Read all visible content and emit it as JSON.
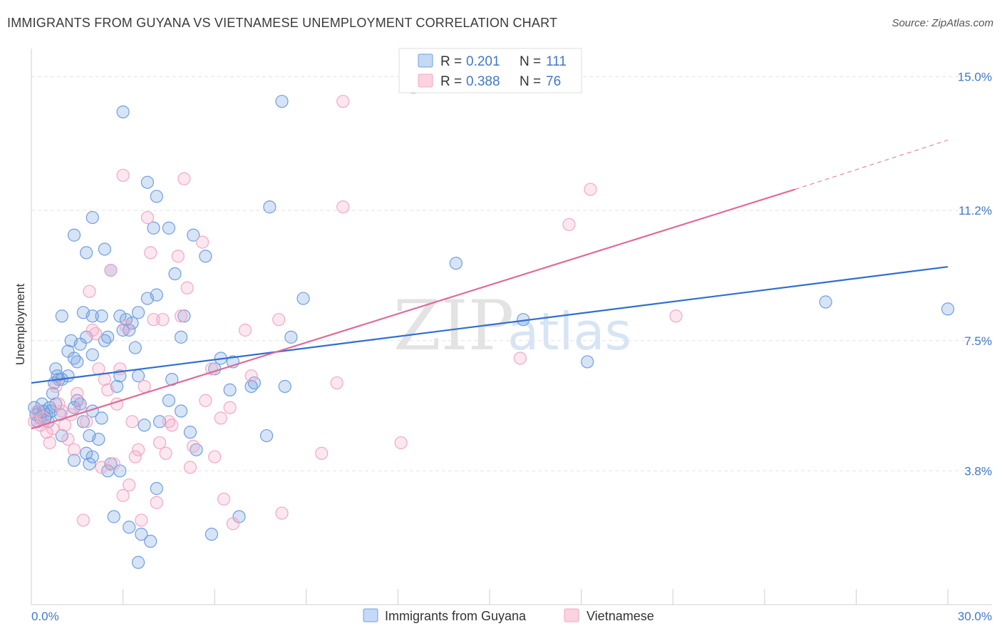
{
  "title": "IMMIGRANTS FROM GUYANA VS VIETNAMESE UNEMPLOYMENT CORRELATION CHART",
  "source": "Source: ZipAtlas.com",
  "watermark": {
    "zip": "ZIP",
    "atlas": "atlas"
  },
  "chart_data": {
    "type": "scatter",
    "xlabel": "",
    "ylabel": "Unemployment",
    "xlim": [
      0,
      30
    ],
    "ylim": [
      0,
      15.6
    ],
    "x_tick_labels": [
      "0.0%",
      "30.0%"
    ],
    "y_ticks": [
      3.8,
      7.5,
      11.2,
      15.0
    ],
    "y_tick_labels": [
      "3.8%",
      "7.5%",
      "11.2%",
      "15.0%"
    ],
    "grid": true,
    "legend_position": "top-center",
    "colors": {
      "guyana": "#6f9fe0",
      "guyana_line": "#2f6fd0",
      "vietnamese": "#f2a8c4",
      "vietnamese_line": "#e06b98",
      "tick": "#3f78c8"
    },
    "legend": [
      {
        "r_label": "R =",
        "r_value": "0.201",
        "n_label": "N =",
        "n_value": "111"
      },
      {
        "r_label": "R =",
        "r_value": "0.388",
        "n_label": "N =",
        "n_value": "76"
      }
    ],
    "series": [
      {
        "name": "Immigrants from Guyana",
        "trend": {
          "x0": 0,
          "y0": 6.3,
          "x1": 30,
          "y1": 9.6
        },
        "points": [
          [
            0.1,
            5.6
          ],
          [
            0.15,
            5.4
          ],
          [
            0.2,
            5.2
          ],
          [
            0.25,
            5.5
          ],
          [
            0.3,
            5.3
          ],
          [
            0.35,
            5.7
          ],
          [
            0.4,
            5.5
          ],
          [
            0.45,
            5.3
          ],
          [
            0.5,
            5.4
          ],
          [
            0.55,
            5.2
          ],
          [
            0.6,
            5.6
          ],
          [
            0.65,
            5.5
          ],
          [
            0.7,
            6.0
          ],
          [
            0.75,
            6.3
          ],
          [
            0.8,
            5.7
          ],
          [
            0.85,
            6.5
          ],
          [
            0.9,
            6.4
          ],
          [
            0.95,
            5.4
          ],
          [
            1.0,
            4.8
          ],
          [
            0.8,
            6.7
          ],
          [
            1.0,
            6.4
          ],
          [
            1.2,
            6.5
          ],
          [
            1.0,
            8.2
          ],
          [
            1.2,
            7.2
          ],
          [
            1.3,
            7.5
          ],
          [
            1.4,
            5.6
          ],
          [
            1.4,
            7.0
          ],
          [
            1.5,
            5.8
          ],
          [
            1.5,
            6.9
          ],
          [
            1.6,
            5.7
          ],
          [
            1.7,
            5.2
          ],
          [
            1.4,
            4.1
          ],
          [
            1.4,
            10.5
          ],
          [
            1.6,
            7.4
          ],
          [
            1.7,
            8.3
          ],
          [
            1.8,
            10.0
          ],
          [
            1.8,
            7.6
          ],
          [
            1.8,
            4.3
          ],
          [
            1.9,
            4.8
          ],
          [
            1.9,
            4.0
          ],
          [
            2.0,
            4.2
          ],
          [
            2.0,
            8.2
          ],
          [
            2.0,
            7.1
          ],
          [
            2.0,
            5.5
          ],
          [
            2.0,
            11.0
          ],
          [
            2.2,
            4.7
          ],
          [
            2.3,
            5.3
          ],
          [
            2.3,
            8.2
          ],
          [
            2.4,
            7.5
          ],
          [
            2.4,
            10.1
          ],
          [
            2.5,
            3.8
          ],
          [
            2.5,
            7.6
          ],
          [
            2.6,
            4.0
          ],
          [
            2.6,
            9.5
          ],
          [
            2.7,
            2.5
          ],
          [
            2.8,
            6.2
          ],
          [
            2.9,
            3.8
          ],
          [
            2.9,
            6.5
          ],
          [
            2.9,
            8.2
          ],
          [
            3.0,
            7.8
          ],
          [
            3.0,
            14.0
          ],
          [
            3.1,
            8.1
          ],
          [
            3.2,
            7.8
          ],
          [
            3.2,
            2.2
          ],
          [
            3.3,
            8.0
          ],
          [
            3.4,
            7.3
          ],
          [
            3.5,
            6.5
          ],
          [
            3.5,
            1.2
          ],
          [
            3.5,
            8.3
          ],
          [
            3.6,
            2.0
          ],
          [
            3.7,
            5.1
          ],
          [
            3.8,
            8.7
          ],
          [
            3.8,
            12.0
          ],
          [
            3.9,
            1.8
          ],
          [
            4.0,
            10.7
          ],
          [
            4.1,
            3.3
          ],
          [
            4.1,
            8.8
          ],
          [
            4.1,
            11.6
          ],
          [
            4.2,
            5.2
          ],
          [
            4.5,
            5.8
          ],
          [
            4.5,
            10.7
          ],
          [
            4.6,
            6.4
          ],
          [
            4.7,
            9.4
          ],
          [
            4.9,
            5.5
          ],
          [
            4.9,
            7.6
          ],
          [
            5.0,
            8.2
          ],
          [
            5.2,
            4.9
          ],
          [
            5.3,
            10.5
          ],
          [
            5.4,
            4.4
          ],
          [
            5.7,
            9.9
          ],
          [
            5.9,
            2.0
          ],
          [
            6.0,
            6.7
          ],
          [
            6.2,
            7.0
          ],
          [
            6.5,
            6.1
          ],
          [
            6.6,
            6.9
          ],
          [
            6.8,
            2.5
          ],
          [
            7.2,
            6.2
          ],
          [
            7.3,
            6.3
          ],
          [
            7.7,
            4.8
          ],
          [
            7.8,
            11.3
          ],
          [
            8.2,
            14.3
          ],
          [
            8.3,
            6.2
          ],
          [
            8.5,
            7.6
          ],
          [
            8.9,
            8.7
          ],
          [
            13.9,
            9.7
          ],
          [
            16.1,
            8.1
          ],
          [
            18.2,
            6.9
          ],
          [
            26.0,
            8.6
          ],
          [
            30.0,
            8.4
          ]
        ]
      },
      {
        "name": "Vietnamese",
        "trend": {
          "x0": 0,
          "y0": 5.0,
          "x1": 25,
          "y1": 11.8
        },
        "trend_dashed": {
          "x0": 25,
          "y0": 11.8,
          "x1": 30,
          "y1": 13.2
        },
        "points": [
          [
            0.1,
            5.2
          ],
          [
            0.2,
            5.5
          ],
          [
            0.3,
            5.1
          ],
          [
            0.4,
            5.3
          ],
          [
            0.5,
            4.9
          ],
          [
            0.6,
            4.6
          ],
          [
            0.7,
            5.0
          ],
          [
            0.8,
            6.2
          ],
          [
            0.9,
            5.7
          ],
          [
            1.0,
            5.5
          ],
          [
            1.1,
            5.1
          ],
          [
            1.2,
            4.7
          ],
          [
            1.3,
            5.4
          ],
          [
            1.4,
            4.4
          ],
          [
            1.5,
            6.0
          ],
          [
            1.6,
            5.6
          ],
          [
            1.7,
            2.4
          ],
          [
            1.8,
            5.2
          ],
          [
            1.9,
            8.9
          ],
          [
            2.0,
            7.8
          ],
          [
            2.1,
            7.7
          ],
          [
            2.2,
            6.7
          ],
          [
            2.3,
            3.9
          ],
          [
            2.4,
            6.4
          ],
          [
            2.5,
            6.1
          ],
          [
            2.6,
            9.5
          ],
          [
            2.7,
            4.0
          ],
          [
            2.8,
            5.7
          ],
          [
            2.9,
            6.7
          ],
          [
            3.0,
            3.1
          ],
          [
            3.0,
            12.2
          ],
          [
            3.1,
            7.9
          ],
          [
            3.2,
            3.4
          ],
          [
            3.3,
            5.2
          ],
          [
            3.4,
            4.2
          ],
          [
            3.5,
            4.4
          ],
          [
            3.6,
            2.4
          ],
          [
            3.7,
            6.2
          ],
          [
            3.8,
            11.0
          ],
          [
            3.9,
            10.0
          ],
          [
            4.0,
            8.1
          ],
          [
            4.1,
            2.9
          ],
          [
            4.2,
            4.6
          ],
          [
            4.3,
            8.1
          ],
          [
            4.4,
            4.3
          ],
          [
            4.5,
            5.2
          ],
          [
            4.6,
            5.1
          ],
          [
            4.8,
            9.9
          ],
          [
            4.9,
            8.2
          ],
          [
            5.0,
            12.1
          ],
          [
            5.1,
            9.0
          ],
          [
            5.2,
            3.9
          ],
          [
            5.3,
            4.5
          ],
          [
            5.6,
            10.3
          ],
          [
            5.7,
            5.8
          ],
          [
            5.9,
            6.7
          ],
          [
            6.0,
            4.2
          ],
          [
            6.2,
            5.3
          ],
          [
            6.3,
            3.0
          ],
          [
            6.5,
            5.6
          ],
          [
            6.6,
            2.3
          ],
          [
            7.0,
            7.8
          ],
          [
            7.2,
            6.5
          ],
          [
            8.1,
            8.1
          ],
          [
            8.2,
            2.6
          ],
          [
            9.5,
            4.3
          ],
          [
            10.0,
            6.3
          ],
          [
            10.2,
            14.3
          ],
          [
            10.2,
            11.3
          ],
          [
            12.1,
            4.6
          ],
          [
            12.5,
            14.7
          ],
          [
            16.0,
            7.0
          ],
          [
            17.6,
            10.8
          ],
          [
            18.3,
            11.8
          ],
          [
            21.1,
            8.2
          ]
        ]
      }
    ]
  },
  "bottom_legend": [
    {
      "label": "Immigrants from Guyana"
    },
    {
      "label": "Vietnamese"
    }
  ]
}
